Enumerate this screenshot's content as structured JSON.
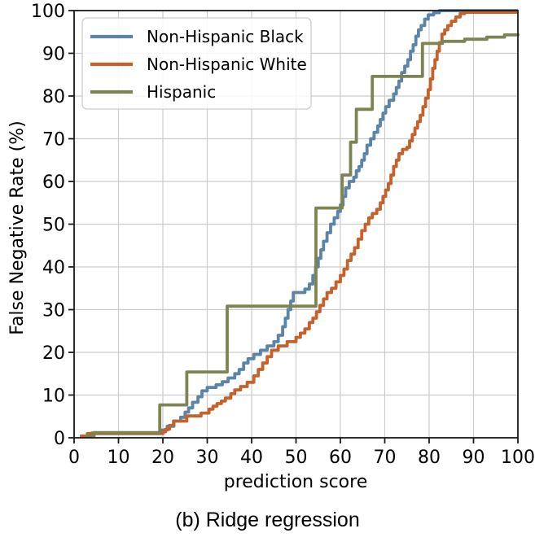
{
  "figure": {
    "caption": "(b) Ridge regression"
  },
  "chart_data": {
    "type": "line",
    "subtype": "step-ecdf",
    "title": "",
    "xlabel": "prediction score",
    "ylabel": "False Negative Rate (%)",
    "xlim": [
      0,
      100
    ],
    "ylim": [
      0,
      100
    ],
    "xticks": [
      0,
      10,
      20,
      30,
      40,
      50,
      60,
      70,
      80,
      90,
      100
    ],
    "yticks": [
      0,
      10,
      20,
      30,
      40,
      50,
      60,
      70,
      80,
      90,
      100
    ],
    "grid": true,
    "grid_color": "#cccccc",
    "spine_color": "#1a1a1a",
    "legend_position": "upper-left",
    "series": [
      {
        "name": "Non-Hispanic Black",
        "color": "#5b84a8",
        "points": [
          [
            2,
            0.4
          ],
          [
            4,
            1.1
          ],
          [
            19.5,
            1.8
          ],
          [
            21,
            2.7
          ],
          [
            22.5,
            3.9
          ],
          [
            24,
            4.8
          ],
          [
            25,
            6
          ],
          [
            25.8,
            7
          ],
          [
            26.7,
            8.3
          ],
          [
            27.9,
            9.6
          ],
          [
            28.8,
            11
          ],
          [
            30,
            11.8
          ],
          [
            32,
            12.4
          ],
          [
            33.4,
            13.1
          ],
          [
            34.7,
            14
          ],
          [
            36.2,
            15
          ],
          [
            37.2,
            16
          ],
          [
            38.2,
            17.5
          ],
          [
            39.2,
            18.5
          ],
          [
            40.5,
            19.5
          ],
          [
            42,
            20.5
          ],
          [
            43.5,
            21.5
          ],
          [
            45,
            22.5
          ],
          [
            46,
            24
          ],
          [
            47,
            26
          ],
          [
            47.6,
            28
          ],
          [
            48.2,
            30
          ],
          [
            48.8,
            32
          ],
          [
            49.4,
            34
          ],
          [
            52,
            34.8
          ],
          [
            53,
            36
          ],
          [
            53.8,
            38
          ],
          [
            54.4,
            40
          ],
          [
            55,
            42
          ],
          [
            55.6,
            44
          ],
          [
            56.2,
            46
          ],
          [
            57,
            48
          ],
          [
            57.8,
            50
          ],
          [
            58.6,
            51.5
          ],
          [
            59.4,
            53
          ],
          [
            60,
            54.5
          ],
          [
            60.6,
            56.5
          ],
          [
            61.2,
            58.5
          ],
          [
            62,
            60
          ],
          [
            63,
            61
          ],
          [
            63.6,
            62.5
          ],
          [
            64.2,
            63.5
          ],
          [
            64.8,
            65
          ],
          [
            65.4,
            66.5
          ],
          [
            66,
            68.5
          ],
          [
            66.8,
            70
          ],
          [
            67.6,
            71.5
          ],
          [
            68.4,
            73
          ],
          [
            69,
            74.5
          ],
          [
            69.6,
            76
          ],
          [
            70.2,
            77.5
          ],
          [
            71,
            79
          ],
          [
            72,
            80.5
          ],
          [
            72.6,
            82
          ],
          [
            73.2,
            83.5
          ],
          [
            73.8,
            85.5
          ],
          [
            74.5,
            87
          ],
          [
            75.2,
            88.5
          ],
          [
            75.8,
            90.5
          ],
          [
            76.4,
            92
          ],
          [
            77,
            94
          ],
          [
            77.6,
            95.5
          ],
          [
            78.2,
            96.5
          ],
          [
            79,
            98
          ],
          [
            79.8,
            99
          ],
          [
            81,
            99.5
          ],
          [
            82.3,
            100
          ],
          [
            100,
            100
          ]
        ]
      },
      {
        "name": "Non-Hispanic White",
        "color": "#c4612d",
        "points": [
          [
            1.3,
            0.4
          ],
          [
            3,
            1
          ],
          [
            20,
            1.4
          ],
          [
            20.6,
            2
          ],
          [
            21.5,
            2.9
          ],
          [
            22.4,
            3.9
          ],
          [
            25.4,
            5.1
          ],
          [
            28.6,
            5.8
          ],
          [
            30.4,
            6.7
          ],
          [
            31.3,
            7.4
          ],
          [
            32.2,
            8
          ],
          [
            33.2,
            8.6
          ],
          [
            34.1,
            9.3
          ],
          [
            35.3,
            10.3
          ],
          [
            36.2,
            11.2
          ],
          [
            37.5,
            12
          ],
          [
            39,
            13
          ],
          [
            40.5,
            14.5
          ],
          [
            41.5,
            16
          ],
          [
            42.5,
            17.5
          ],
          [
            43.5,
            19
          ],
          [
            44.5,
            20.5
          ],
          [
            46,
            21.5
          ],
          [
            48,
            22.5
          ],
          [
            50,
            23.5
          ],
          [
            51,
            24.5
          ],
          [
            52,
            25.5
          ],
          [
            53,
            27
          ],
          [
            53.8,
            28
          ],
          [
            54.6,
            29.5
          ],
          [
            55.4,
            31
          ],
          [
            56.2,
            32.5
          ],
          [
            57,
            34
          ],
          [
            58,
            35
          ],
          [
            59,
            36.5
          ],
          [
            60,
            38
          ],
          [
            60.8,
            39.5
          ],
          [
            61.6,
            41.5
          ],
          [
            62.4,
            43
          ],
          [
            63.2,
            44.5
          ],
          [
            64,
            46.5
          ],
          [
            64.8,
            48.5
          ],
          [
            65.6,
            50
          ],
          [
            66.4,
            51.5
          ],
          [
            67.2,
            52.5
          ],
          [
            68.2,
            53.5
          ],
          [
            69,
            55
          ],
          [
            69.6,
            56.5
          ],
          [
            70.2,
            58
          ],
          [
            70.8,
            59.5
          ],
          [
            71.4,
            61.5
          ],
          [
            72,
            63.5
          ],
          [
            72.6,
            65
          ],
          [
            73.2,
            66.5
          ],
          [
            74,
            67.5
          ],
          [
            75,
            68
          ],
          [
            75.6,
            69.5
          ],
          [
            76.2,
            71
          ],
          [
            76.8,
            72.5
          ],
          [
            77.4,
            74
          ],
          [
            78,
            75.5
          ],
          [
            78.6,
            77.5
          ],
          [
            79.2,
            79.5
          ],
          [
            79.8,
            81.5
          ],
          [
            80.3,
            84
          ],
          [
            80.8,
            86.5
          ],
          [
            81.3,
            88.5
          ],
          [
            81.8,
            90.5
          ],
          [
            82.3,
            92.5
          ],
          [
            82.9,
            94.5
          ],
          [
            83.5,
            95.5
          ],
          [
            84.2,
            96.5
          ],
          [
            85,
            97.5
          ],
          [
            86,
            98.5
          ],
          [
            87,
            99.3
          ],
          [
            88,
            99.6
          ],
          [
            100,
            99.6
          ]
        ]
      },
      {
        "name": "Hispanic",
        "color": "#7e8352",
        "points": [
          [
            2.5,
            0.4
          ],
          [
            4.5,
            1.2
          ],
          [
            19.3,
            7.7
          ],
          [
            25.4,
            15.4
          ],
          [
            34.5,
            30.8
          ],
          [
            54.5,
            53.8
          ],
          [
            60.4,
            61.5
          ],
          [
            62.3,
            69.2
          ],
          [
            63.6,
            76.9
          ],
          [
            67.2,
            84.6
          ],
          [
            78.5,
            92.3
          ],
          [
            83,
            92.8
          ],
          [
            88,
            93.3
          ],
          [
            93,
            93.8
          ],
          [
            97,
            94.3
          ],
          [
            100,
            94.6
          ]
        ]
      }
    ]
  }
}
